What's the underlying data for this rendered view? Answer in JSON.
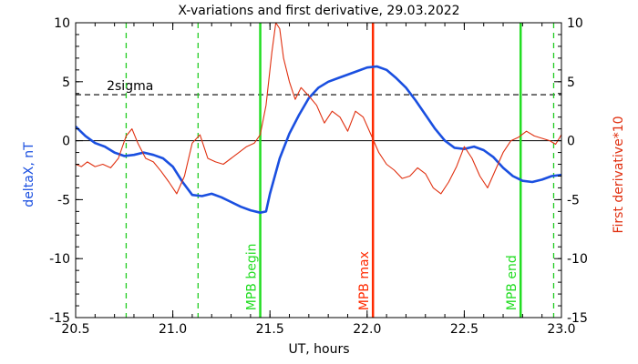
{
  "chart_data": {
    "type": "line",
    "title": "X-variations and first derivative, 29.03.2022",
    "xlabel": "UT, hours",
    "ylabel_left": "deltaX, nT",
    "ylabel_right": "First derivative*10",
    "xlim": [
      20.5,
      23.0
    ],
    "ylim": [
      -15,
      10
    ],
    "xticks": [
      20.5,
      21.0,
      21.5,
      22.0,
      22.5,
      23.0
    ],
    "yticks": [
      -15,
      -10,
      -5,
      0,
      5,
      10
    ],
    "zero_line": 0,
    "sigma_line": {
      "label": "2sigma",
      "y": 3.9
    },
    "colors": {
      "deltaX": "#1a4fe0",
      "derivative": "#e03010",
      "mpb_edges": "#22dd22",
      "mpb_max": "#ff2a00",
      "dashed_markers": "#22cc22",
      "axes": "#000000"
    },
    "vertical_markers": [
      {
        "x": 20.76,
        "label": "",
        "style": "dashed"
      },
      {
        "x": 21.13,
        "label": "",
        "style": "dashed"
      },
      {
        "x": 21.45,
        "label": "MPB begin",
        "style": "solid-green"
      },
      {
        "x": 22.03,
        "label": "MPB max",
        "style": "solid-red"
      },
      {
        "x": 22.79,
        "label": "MPB end",
        "style": "solid-green"
      },
      {
        "x": 22.96,
        "label": "",
        "style": "dashed"
      }
    ],
    "series": [
      {
        "key": "deltaX",
        "x": [
          20.5,
          20.55,
          20.6,
          20.65,
          20.7,
          20.75,
          20.8,
          20.85,
          20.9,
          20.95,
          21.0,
          21.05,
          21.1,
          21.15,
          21.2,
          21.25,
          21.3,
          21.35,
          21.4,
          21.45,
          21.48,
          21.5,
          21.55,
          21.6,
          21.65,
          21.7,
          21.75,
          21.8,
          21.85,
          21.9,
          21.95,
          22.0,
          22.05,
          22.1,
          22.15,
          22.2,
          22.25,
          22.3,
          22.35,
          22.4,
          22.45,
          22.5,
          22.55,
          22.6,
          22.65,
          22.7,
          22.75,
          22.8,
          22.85,
          22.9,
          22.95,
          23.0
        ],
        "values": [
          1.2,
          0.4,
          -0.2,
          -0.5,
          -1.0,
          -1.3,
          -1.2,
          -1.0,
          -1.2,
          -1.5,
          -2.2,
          -3.5,
          -4.6,
          -4.7,
          -4.5,
          -4.8,
          -5.2,
          -5.6,
          -5.9,
          -6.1,
          -6.0,
          -4.5,
          -1.5,
          0.6,
          2.2,
          3.6,
          4.5,
          5.0,
          5.3,
          5.6,
          5.9,
          6.2,
          6.3,
          6.0,
          5.3,
          4.5,
          3.4,
          2.2,
          1.0,
          0.0,
          -0.6,
          -0.7,
          -0.5,
          -0.8,
          -1.4,
          -2.3,
          -3.0,
          -3.4,
          -3.5,
          -3.3,
          -3.0,
          -2.9
        ]
      },
      {
        "key": "derivative",
        "x": [
          20.5,
          20.53,
          20.56,
          20.6,
          20.64,
          20.68,
          20.72,
          20.76,
          20.79,
          20.82,
          20.86,
          20.9,
          20.94,
          20.98,
          21.02,
          21.06,
          21.1,
          21.14,
          21.18,
          21.22,
          21.26,
          21.3,
          21.34,
          21.38,
          21.42,
          21.45,
          21.48,
          21.51,
          21.53,
          21.55,
          21.57,
          21.6,
          21.63,
          21.66,
          21.7,
          21.74,
          21.78,
          21.82,
          21.86,
          21.9,
          21.94,
          21.98,
          22.02,
          22.06,
          22.1,
          22.14,
          22.18,
          22.22,
          22.26,
          22.3,
          22.34,
          22.38,
          22.42,
          22.46,
          22.5,
          22.54,
          22.58,
          22.62,
          22.66,
          22.7,
          22.74,
          22.78,
          22.82,
          22.86,
          22.9,
          22.94,
          22.97,
          23.0
        ],
        "values": [
          -2.0,
          -2.2,
          -1.8,
          -2.2,
          -2.0,
          -2.3,
          -1.5,
          0.4,
          1.0,
          -0.2,
          -1.5,
          -1.8,
          -2.6,
          -3.5,
          -4.5,
          -3.0,
          -0.2,
          0.5,
          -1.5,
          -1.8,
          -2.0,
          -1.5,
          -1.0,
          -0.5,
          -0.2,
          0.5,
          3.0,
          7.5,
          10.0,
          9.5,
          7.0,
          5.0,
          3.5,
          4.5,
          3.8,
          3.0,
          1.5,
          2.5,
          2.0,
          0.8,
          2.5,
          2.0,
          0.5,
          -1.0,
          -2.0,
          -2.5,
          -3.2,
          -3.0,
          -2.3,
          -2.8,
          -4.0,
          -4.5,
          -3.5,
          -2.2,
          -0.5,
          -1.5,
          -3.0,
          -4.0,
          -2.5,
          -1.0,
          0.0,
          0.3,
          0.8,
          0.4,
          0.2,
          0.0,
          -0.3,
          0.5
        ]
      }
    ]
  }
}
